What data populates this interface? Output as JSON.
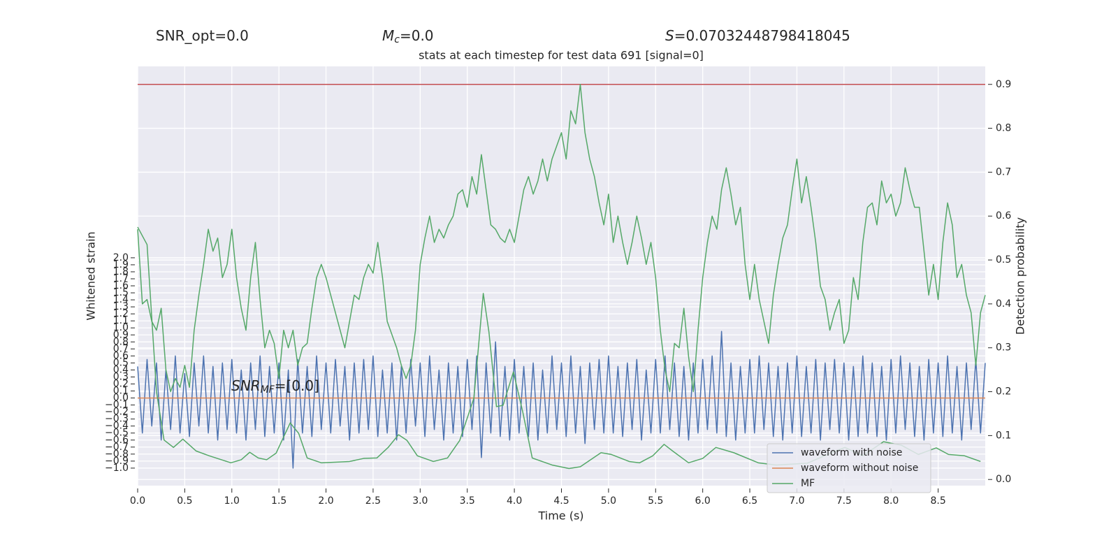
{
  "chart_data": {
    "type": "line",
    "title": "stats at each timestep for test data 691 [signal=0]",
    "annotations": [
      {
        "text": "SNR_opt=0.0"
      },
      {
        "symbol": "M",
        "subscript": "c",
        "text": "=0.0"
      },
      {
        "symbol": "S",
        "text": "=0.07032448798418045"
      },
      {
        "symbol": "SNR",
        "subscript": "MF",
        "text": "=[0.0]"
      }
    ],
    "xlabel": "Time (s)",
    "ylabel": "Whitened strain",
    "y2label": "Detection probability",
    "xlim": [
      0,
      9.0
    ],
    "ylim": [
      -1.25,
      4.73
    ],
    "y2lim": [
      -0.014,
      0.941
    ],
    "xticks": [
      {
        "value": 0,
        "label": "0.0"
      },
      0.5,
      {
        "value": 1,
        "label": "1.0"
      },
      1.5,
      {
        "value": 2,
        "label": "2.0"
      },
      2.5,
      {
        "value": 3,
        "label": "3.0"
      },
      3.5,
      {
        "value": 4,
        "label": "4.0"
      },
      4.5,
      {
        "value": 5,
        "label": "5.0"
      },
      5.5,
      {
        "value": 6,
        "label": "6.0"
      },
      6.5,
      {
        "value": 7,
        "label": "7.0"
      },
      7.5,
      {
        "value": 8,
        "label": "8.0"
      },
      8.5
    ],
    "yticks": [
      {
        "value": -1,
        "label": "−1.0"
      },
      {
        "value": -0.9,
        "label": "−0.9"
      },
      {
        "value": -0.8,
        "label": "−0.8"
      },
      {
        "value": -0.7,
        "label": "−0.7"
      },
      {
        "value": -0.6,
        "label": "−0.6"
      },
      {
        "value": -0.5,
        "label": "−0.5"
      },
      {
        "value": -0.4,
        "label": "−0.4"
      },
      {
        "value": -0.3,
        "label": "−0.3"
      },
      {
        "value": -0.2,
        "label": "−0.2"
      },
      {
        "value": -0.1,
        "label": "−0.1"
      },
      {
        "value": 0,
        "label": "0.0"
      },
      0.1,
      0.2,
      0.3,
      0.4,
      0.5,
      0.6,
      0.7,
      0.8,
      0.9,
      {
        "value": 1,
        "label": "1.0"
      },
      1.1,
      1.2,
      1.3,
      1.4,
      1.5,
      1.6,
      1.7,
      1.8,
      1.9,
      {
        "value": 2,
        "label": "2.0"
      }
    ],
    "y2ticks": [
      {
        "value": 0,
        "label": "0.0"
      },
      0.1,
      0.2,
      0.3,
      0.4,
      0.5,
      0.6,
      0.7,
      0.8,
      0.9
    ],
    "grid": true,
    "legend": "lower right",
    "x": [
      0,
      0.05,
      0.1,
      0.15,
      0.2,
      0.25,
      0.3,
      0.35,
      0.4,
      0.45,
      0.5,
      0.55,
      0.6,
      0.65,
      0.7,
      0.75,
      0.8,
      0.85,
      0.9,
      0.95,
      1,
      1.05,
      1.1,
      1.15,
      1.2,
      1.25,
      1.3,
      1.35,
      1.4,
      1.45,
      1.5,
      1.55,
      1.6,
      1.65,
      1.7,
      1.75,
      1.8,
      1.85,
      1.9,
      1.95,
      2,
      2.05,
      2.1,
      2.15,
      2.2,
      2.25,
      2.3,
      2.35,
      2.4,
      2.45,
      2.5,
      2.55,
      2.6,
      2.65,
      2.7,
      2.75,
      2.8,
      2.85,
      2.9,
      2.95,
      3,
      3.05,
      3.1,
      3.15,
      3.2,
      3.25,
      3.3,
      3.35,
      3.4,
      3.45,
      3.5,
      3.55,
      3.6,
      3.65,
      3.7,
      3.75,
      3.8,
      3.85,
      3.9,
      3.95,
      4,
      4.05,
      4.1,
      4.15,
      4.2,
      4.25,
      4.3,
      4.35,
      4.4,
      4.45,
      4.5,
      4.55,
      4.6,
      4.65,
      4.7,
      4.75,
      4.8,
      4.85,
      4.9,
      4.95,
      5,
      5.05,
      5.1,
      5.15,
      5.2,
      5.25,
      5.3,
      5.35,
      5.4,
      5.45,
      5.5,
      5.55,
      5.6,
      5.65,
      5.7,
      5.75,
      5.8,
      5.85,
      5.9,
      5.95,
      6,
      6.05,
      6.1,
      6.15,
      6.2,
      6.25,
      6.3,
      6.35,
      6.4,
      6.45,
      6.5,
      6.55,
      6.6,
      6.65,
      6.7,
      6.75,
      6.8,
      6.85,
      6.9,
      6.95,
      7,
      7.05,
      7.1,
      7.15,
      7.2,
      7.25,
      7.3,
      7.35,
      7.4,
      7.45,
      7.5,
      7.55,
      7.6,
      7.65,
      7.7,
      7.75,
      7.8,
      7.85,
      7.9,
      7.95,
      8,
      8.05,
      8.1,
      8.15,
      8.2,
      8.25,
      8.3,
      8.35,
      8.4,
      8.45,
      8.5,
      8.55,
      8.6,
      8.65,
      8.7,
      8.75,
      8.8,
      8.85,
      8.9,
      8.95,
      9
    ],
    "series": [
      {
        "name": "waveform with noise",
        "color": "#4c72b0",
        "values": [
          0.45,
          -0.5,
          0.55,
          -0.4,
          0.5,
          -0.6,
          0.4,
          -0.45,
          0.6,
          -0.5,
          0.35,
          -0.55,
          0.5,
          -0.4,
          0.6,
          -0.5,
          0.45,
          -0.6,
          0.5,
          -0.45,
          0.55,
          -0.5,
          0.4,
          -0.6,
          0.5,
          -0.45,
          0.6,
          -0.55,
          0.45,
          -0.5,
          0.5,
          -0.6,
          0.4,
          -1.0,
          0.55,
          -0.5,
          0.45,
          -0.55,
          0.6,
          -0.45,
          0.5,
          -0.5,
          0.55,
          -0.4,
          0.45,
          -0.6,
          0.5,
          -0.5,
          0.55,
          -0.45,
          0.6,
          -0.55,
          0.4,
          -0.5,
          0.5,
          -0.6,
          0.45,
          -0.5,
          0.55,
          -0.4,
          0.5,
          -0.55,
          0.6,
          -0.45,
          0.4,
          -0.6,
          0.5,
          -0.5,
          0.45,
          -0.55,
          0.55,
          -0.45,
          0.6,
          -0.85,
          0.5,
          -0.5,
          0.8,
          -0.55,
          0.45,
          -0.6,
          0.55,
          -0.5,
          0.45,
          -0.55,
          0.5,
          -0.6,
          0.4,
          -0.5,
          0.6,
          -0.45,
          0.5,
          -0.55,
          0.6,
          -0.5,
          0.45,
          -0.65,
          0.5,
          -0.45,
          0.55,
          -0.5,
          0.6,
          -0.5,
          0.45,
          -0.55,
          0.5,
          -0.45,
          0.55,
          -0.6,
          0.4,
          -0.5,
          0.55,
          -0.5,
          0.6,
          -0.45,
          0.5,
          -0.55,
          0.45,
          -0.6,
          0.5,
          -0.5,
          0.55,
          -0.45,
          0.6,
          -0.5,
          0.95,
          -0.55,
          0.5,
          -0.6,
          0.45,
          -0.5,
          0.55,
          -0.5,
          0.6,
          -0.45,
          0.5,
          -0.55,
          0.45,
          -0.6,
          0.5,
          -0.5,
          0.6,
          -0.55,
          0.45,
          -0.5,
          0.55,
          -0.6,
          0.5,
          -0.45,
          0.55,
          -0.5,
          0.5,
          -0.6,
          0.45,
          -0.55,
          0.6,
          -0.5,
          0.5,
          -0.55,
          0.45,
          -0.6,
          0.55,
          -0.5,
          0.6,
          -0.45,
          0.5,
          -0.55,
          0.45,
          -0.6,
          0.55,
          -0.5,
          0.5,
          -0.55,
          0.6,
          -0.5,
          0.45,
          -0.6,
          0.5,
          -0.45,
          0.55,
          -0.5,
          0.5
        ]
      },
      {
        "name": "waveform without noise",
        "color": "#dd8452",
        "x": [
          0,
          9.0
        ],
        "values": [
          0,
          0
        ]
      },
      {
        "color": "#c44e52",
        "axis": "y2",
        "x": [
          0,
          9.0
        ],
        "values": [
          0.9,
          0.9
        ]
      },
      {
        "color": "#55a868",
        "axis": "y2",
        "values": [
          0.57,
          0.4,
          0.41,
          0.36,
          0.34,
          0.39,
          0.25,
          0.2,
          0.23,
          0.21,
          0.26,
          0.21,
          0.34,
          0.42,
          0.49,
          0.57,
          0.52,
          0.55,
          0.46,
          0.49,
          0.57,
          0.46,
          0.39,
          0.34,
          0.46,
          0.54,
          0.41,
          0.3,
          0.34,
          0.31,
          0.23,
          0.34,
          0.3,
          0.34,
          0.26,
          0.3,
          0.31,
          0.39,
          0.46,
          0.49,
          0.46,
          0.42,
          0.38,
          0.34,
          0.3,
          0.36,
          0.42,
          0.41,
          0.46,
          0.49,
          0.47,
          0.54,
          0.46,
          0.36,
          0.33,
          0.3,
          0.26,
          0.23,
          0.26,
          0.34,
          0.49,
          0.55,
          0.6,
          0.54,
          0.57,
          0.55,
          0.58,
          0.6,
          0.65,
          0.66,
          0.62,
          0.69,
          0.65,
          0.74,
          0.66,
          0.58,
          0.57,
          0.55,
          0.54,
          0.57,
          0.54,
          0.6,
          0.66,
          0.69,
          0.65,
          0.68,
          0.73,
          0.68,
          0.73,
          0.76,
          0.79,
          0.73,
          0.84,
          0.81,
          0.9,
          0.79,
          0.73,
          0.69,
          0.63,
          0.58,
          0.65,
          0.54,
          0.6,
          0.54,
          0.49,
          0.54,
          0.6,
          0.55,
          0.49,
          0.54,
          0.46,
          0.34,
          0.25,
          0.2,
          0.31,
          0.3,
          0.39,
          0.28,
          0.2,
          0.34,
          0.46,
          0.54,
          0.6,
          0.57,
          0.66,
          0.71,
          0.65,
          0.58,
          0.62,
          0.49,
          0.41,
          0.49,
          0.41,
          0.36,
          0.31,
          0.42,
          0.49,
          0.55,
          0.58,
          0.66,
          0.73,
          0.63,
          0.69,
          0.62,
          0.54,
          0.44,
          0.41,
          0.34,
          0.38,
          0.41,
          0.31,
          0.34,
          0.46,
          0.41,
          0.54,
          0.62,
          0.63,
          0.58,
          0.68,
          0.63,
          0.65,
          0.6,
          0.63,
          0.71,
          0.66,
          0.62,
          0.62,
          0.52,
          0.42,
          0.49,
          0.41,
          0.54,
          0.63,
          0.58,
          0.46,
          0.49,
          0.42,
          0.38,
          0.26,
          0.38,
          0.42
        ]
      },
      {
        "name": "MF",
        "color": "#55a868",
        "axis": "y2",
        "x": [
          0,
          0.1,
          0.2,
          0.28,
          0.38,
          0.48,
          0.62,
          0.76,
          0.99,
          1.1,
          1.19,
          1.28,
          1.37,
          1.47,
          1.62,
          1.71,
          1.8,
          1.95,
          2.25,
          2.4,
          2.54,
          2.66,
          2.77,
          2.86,
          2.97,
          3.14,
          3.29,
          3.42,
          3.57,
          3.67,
          3.73,
          3.81,
          3.88,
          3.99,
          4.09,
          4.19,
          4.4,
          4.58,
          4.7,
          4.92,
          5.03,
          5.22,
          5.33,
          5.47,
          5.59,
          5.68,
          5.85,
          6.0,
          6.14,
          6.33,
          6.59,
          6.78,
          7.11,
          7.37,
          7.51,
          7.7,
          7.92,
          8.11,
          8.29,
          8.48,
          8.61,
          8.78,
          8.95
        ],
        "values": [
          0.575,
          0.535,
          0.2,
          0.09,
          0.073,
          0.092,
          0.065,
          0.054,
          0.038,
          0.045,
          0.062,
          0.049,
          0.045,
          0.06,
          0.129,
          0.105,
          0.049,
          0.038,
          0.041,
          0.048,
          0.049,
          0.073,
          0.102,
          0.089,
          0.054,
          0.041,
          0.049,
          0.089,
          0.185,
          0.424,
          0.336,
          0.166,
          0.169,
          0.245,
          0.153,
          0.049,
          0.033,
          0.025,
          0.029,
          0.061,
          0.057,
          0.041,
          0.038,
          0.054,
          0.08,
          0.065,
          0.038,
          0.048,
          0.073,
          0.061,
          0.038,
          0.033,
          0.037,
          0.061,
          0.073,
          0.054,
          0.086,
          0.078,
          0.057,
          0.072,
          0.057,
          0.054,
          0.041
        ]
      }
    ]
  }
}
